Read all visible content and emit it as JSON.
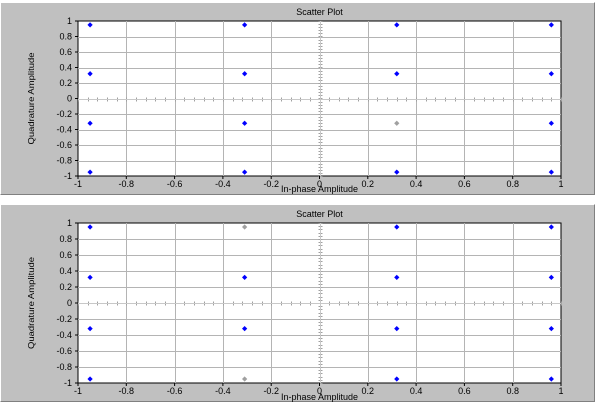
{
  "chart_data": [
    {
      "type": "scatter",
      "title": "Scatter Plot",
      "xlabel": "In-phase Amplitude",
      "ylabel": "Quadrature Amplitude",
      "xlim": [
        -1,
        1
      ],
      "ylim": [
        -1,
        1
      ],
      "x_ticks": [
        "-1",
        "-0.8",
        "-0.6",
        "-0.4",
        "-0.2",
        "0",
        "0.2",
        "0.4",
        "0.6",
        "0.8",
        "1"
      ],
      "y_ticks": [
        "1",
        "0.8",
        "0.6",
        "0.4",
        "0.2",
        "0",
        "-0.2",
        "-0.4",
        "-0.6",
        "-0.8",
        "-1"
      ],
      "grid": true,
      "marker_color": "#0000ff",
      "faint_marker_color": "#a0a0a0",
      "points": [
        {
          "x": -0.95,
          "y": 0.95
        },
        {
          "x": -0.31,
          "y": 0.95
        },
        {
          "x": 0.32,
          "y": 0.95
        },
        {
          "x": 0.96,
          "y": 0.95
        },
        {
          "x": -0.95,
          "y": 0.32
        },
        {
          "x": -0.31,
          "y": 0.32
        },
        {
          "x": 0.32,
          "y": 0.32
        },
        {
          "x": 0.96,
          "y": 0.32
        },
        {
          "x": -0.95,
          "y": -0.32
        },
        {
          "x": -0.31,
          "y": -0.32
        },
        {
          "x": 0.96,
          "y": -0.32
        },
        {
          "x": -0.95,
          "y": -0.95
        },
        {
          "x": -0.31,
          "y": -0.95
        },
        {
          "x": 0.32,
          "y": -0.95
        },
        {
          "x": 0.96,
          "y": -0.95
        }
      ],
      "faint_points": [
        {
          "x": 0.32,
          "y": -0.32
        }
      ]
    },
    {
      "type": "scatter",
      "title": "Scatter Plot",
      "xlabel": "In-phase Amplitude",
      "ylabel": "Quadrature Amplitude",
      "xlim": [
        -1,
        1
      ],
      "ylim": [
        -1,
        1
      ],
      "x_ticks": [
        "-1",
        "-0.8",
        "-0.6",
        "-0.4",
        "-0.2",
        "0",
        "0.2",
        "0.4",
        "0.6",
        "0.8",
        "1"
      ],
      "y_ticks": [
        "1",
        "0.8",
        "0.6",
        "0.4",
        "0.2",
        "0",
        "-0.2",
        "-0.4",
        "-0.6",
        "-0.8",
        "-1"
      ],
      "grid": true,
      "marker_color": "#0000ff",
      "faint_marker_color": "#a0a0a0",
      "points": [
        {
          "x": -0.95,
          "y": 0.95
        },
        {
          "x": 0.32,
          "y": 0.95
        },
        {
          "x": 0.96,
          "y": 0.95
        },
        {
          "x": -0.95,
          "y": 0.32
        },
        {
          "x": -0.31,
          "y": 0.32
        },
        {
          "x": 0.32,
          "y": 0.32
        },
        {
          "x": 0.96,
          "y": 0.32
        },
        {
          "x": -0.95,
          "y": -0.32
        },
        {
          "x": -0.31,
          "y": -0.32
        },
        {
          "x": 0.32,
          "y": -0.32
        },
        {
          "x": 0.96,
          "y": -0.32
        },
        {
          "x": -0.95,
          "y": -0.95
        },
        {
          "x": 0.32,
          "y": -0.95
        },
        {
          "x": 0.96,
          "y": -0.95
        }
      ],
      "faint_points": [
        {
          "x": -0.31,
          "y": 0.95
        },
        {
          "x": -0.31,
          "y": -0.95
        }
      ]
    }
  ]
}
